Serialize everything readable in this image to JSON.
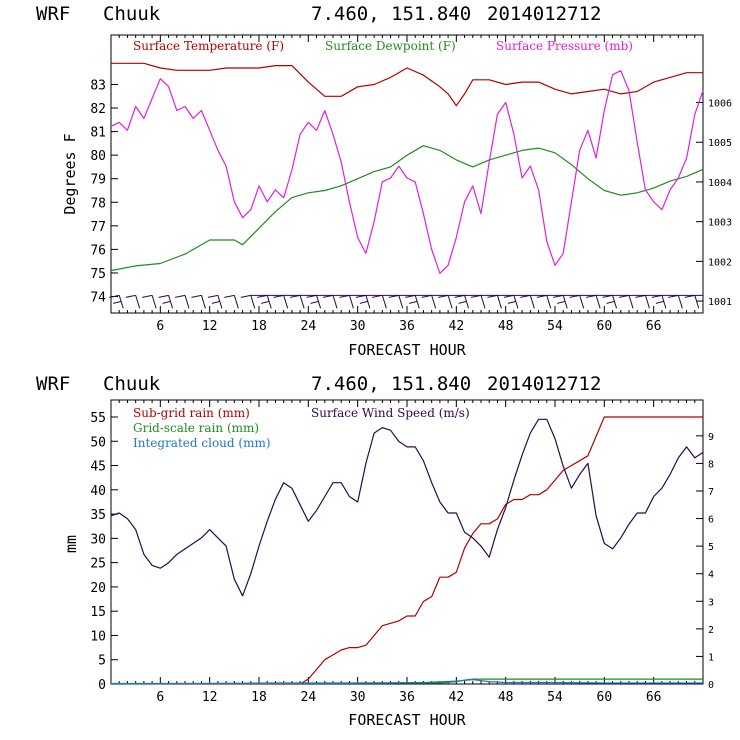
{
  "colors": {
    "temperature": "#b40000",
    "dewpoint": "#228b22",
    "pressure": "#e020e0",
    "subgrid_rain": "#b40000",
    "gridscale_rain": "#228b22",
    "cloud": "#1e78c8",
    "wind": "#2a0a4a",
    "barbs": "#2a0a4a"
  },
  "chart_data": [
    {
      "type": "line",
      "header": {
        "model": "WRF",
        "station": "Chuuk",
        "coords": "7.460, 151.840",
        "init": "2014012712"
      },
      "xlabel": "FORECAST HOUR",
      "ylabel": "Degrees F",
      "xlim": [
        0,
        72
      ],
      "xticks": [
        "6",
        "12",
        "18",
        "24",
        "30",
        "36",
        "42",
        "48",
        "54",
        "60",
        "66"
      ],
      "ylim": [
        73.3,
        85.1
      ],
      "yticks": [
        "74",
        "75",
        "76",
        "77",
        "78",
        "79",
        "80",
        "81",
        "82",
        "83"
      ],
      "y2lim": [
        1000.7,
        1007.7
      ],
      "y2ticks": [
        "1001",
        "1002",
        "1003",
        "1004",
        "1005",
        "1006"
      ],
      "legend": [
        "Surface Temperature (F)",
        "Surface Dewpoint (F)",
        "Surface Pressure (mb)"
      ],
      "series": [
        {
          "name": "Surface Temperature (F)",
          "axis": "left",
          "x": [
            0,
            2,
            4,
            6,
            8,
            10,
            12,
            14,
            16,
            18,
            20,
            22,
            24,
            26,
            28,
            30,
            32,
            34,
            36,
            38,
            40,
            41,
            42,
            43,
            44,
            46,
            48,
            50,
            52,
            54,
            56,
            58,
            60,
            62,
            64,
            66,
            68,
            70,
            72
          ],
          "y": [
            83.9,
            83.9,
            83.9,
            83.7,
            83.6,
            83.6,
            83.6,
            83.7,
            83.7,
            83.7,
            83.8,
            83.8,
            83.1,
            82.5,
            82.5,
            82.9,
            83.0,
            83.3,
            83.7,
            83.4,
            82.9,
            82.6,
            82.1,
            82.6,
            83.2,
            83.2,
            83.0,
            83.1,
            83.1,
            82.8,
            82.6,
            82.7,
            82.8,
            82.6,
            82.7,
            83.1,
            83.3,
            83.5,
            83.5
          ]
        },
        {
          "name": "Surface Dewpoint (F)",
          "axis": "left",
          "x": [
            0,
            3,
            6,
            9,
            12,
            15,
            16,
            18,
            20,
            22,
            24,
            26,
            28,
            30,
            32,
            34,
            36,
            38,
            40,
            42,
            44,
            46,
            48,
            50,
            52,
            54,
            56,
            58,
            60,
            62,
            64,
            66,
            68,
            70,
            72
          ],
          "y": [
            75.1,
            75.3,
            75.4,
            75.8,
            76.4,
            76.4,
            76.2,
            76.9,
            77.6,
            78.2,
            78.4,
            78.5,
            78.7,
            79.0,
            79.3,
            79.5,
            80.0,
            80.4,
            80.2,
            79.8,
            79.5,
            79.8,
            80.0,
            80.2,
            80.3,
            80.1,
            79.6,
            79.0,
            78.5,
            78.3,
            78.4,
            78.6,
            78.9,
            79.1,
            79.4
          ]
        },
        {
          "name": "Surface Pressure (mb)",
          "axis": "right",
          "x": [
            0,
            1,
            2,
            3,
            4,
            5,
            6,
            7,
            8,
            9,
            10,
            11,
            12,
            13,
            14,
            15,
            16,
            17,
            18,
            19,
            20,
            21,
            22,
            23,
            24,
            25,
            26,
            27,
            28,
            29,
            30,
            31,
            32,
            33,
            34,
            35,
            36,
            37,
            38,
            39,
            40,
            41,
            42,
            43,
            44,
            45,
            46,
            47,
            48,
            49,
            50,
            51,
            52,
            53,
            54,
            55,
            56,
            57,
            58,
            59,
            60,
            61,
            62,
            63,
            64,
            65,
            66,
            67,
            68,
            69,
            70,
            71,
            72
          ],
          "y": [
            1005.4,
            1005.5,
            1005.3,
            1005.9,
            1005.6,
            1006.1,
            1006.6,
            1006.4,
            1005.8,
            1005.9,
            1005.6,
            1005.8,
            1005.3,
            1004.8,
            1004.4,
            1003.5,
            1003.1,
            1003.3,
            1003.9,
            1003.5,
            1003.8,
            1003.6,
            1004.3,
            1005.2,
            1005.5,
            1005.3,
            1005.8,
            1005.2,
            1004.5,
            1003.5,
            1002.6,
            1002.2,
            1003.0,
            1004.0,
            1004.1,
            1004.4,
            1004.1,
            1004.0,
            1003.2,
            1002.3,
            1001.7,
            1001.9,
            1002.6,
            1003.5,
            1003.9,
            1003.2,
            1004.5,
            1005.7,
            1006.0,
            1005.2,
            1004.1,
            1004.4,
            1003.8,
            1002.5,
            1001.9,
            1002.2,
            1003.5,
            1004.8,
            1005.3,
            1004.6,
            1005.8,
            1006.7,
            1006.8,
            1006.3,
            1005.0,
            1003.8,
            1003.5,
            1003.3,
            1003.8,
            1004.1,
            1004.6,
            1005.7,
            1006.3
          ]
        }
      ],
      "wind_barbs": {
        "x": [
          1,
          3,
          5,
          7,
          9,
          11,
          13,
          15,
          17,
          19,
          21,
          23,
          25,
          27,
          29,
          31,
          33,
          35,
          37,
          39,
          41,
          43,
          45,
          47,
          49,
          51,
          53,
          55,
          57,
          59,
          61,
          63,
          65,
          67,
          69,
          71
        ],
        "row_value": 74.05,
        "label": "surface wind barbs"
      }
    },
    {
      "type": "line",
      "header": {
        "model": "WRF",
        "station": "Chuuk",
        "coords": "7.460, 151.840",
        "init": "2014012712"
      },
      "xlabel": "FORECAST HOUR",
      "ylabel": "mm",
      "xlim": [
        0,
        72
      ],
      "xticks": [
        "6",
        "12",
        "18",
        "24",
        "30",
        "36",
        "42",
        "48",
        "54",
        "60",
        "66"
      ],
      "ylim": [
        0,
        58.5
      ],
      "yticks": [
        "0",
        "5",
        "10",
        "15",
        "20",
        "25",
        "30",
        "35",
        "40",
        "45",
        "50",
        "55"
      ],
      "y2lim": [
        0,
        10.3
      ],
      "y2ticks": [
        "0",
        "1",
        "2",
        "3",
        "4",
        "5",
        "6",
        "7",
        "8",
        "9"
      ],
      "legend": [
        "Sub-grid rain (mm)",
        "Grid-scale rain (mm)",
        "Integrated cloud (mm)",
        "Surface Wind Speed (m/s)"
      ],
      "series": [
        {
          "name": "Sub-grid rain (mm)",
          "axis": "left",
          "x": [
            0,
            23,
            24,
            25,
            26,
            27,
            28,
            29,
            30,
            31,
            32,
            33,
            34,
            35,
            36,
            37,
            38,
            39,
            40,
            41,
            42,
            43,
            44,
            45,
            46,
            47,
            48,
            49,
            50,
            51,
            52,
            53,
            54,
            55,
            56,
            57,
            58,
            59,
            60,
            61,
            62,
            63,
            64,
            72
          ],
          "y": [
            0,
            0,
            1,
            3,
            5,
            6,
            7,
            7.5,
            7.5,
            8,
            10,
            12,
            12.5,
            13,
            14,
            14,
            17,
            18,
            22,
            22,
            23,
            28,
            31,
            33,
            33,
            34,
            37,
            38,
            38,
            39,
            39,
            40,
            42,
            44,
            45,
            46,
            47,
            51,
            55,
            55,
            55,
            55,
            55,
            55
          ]
        },
        {
          "name": "Grid-scale rain (mm)",
          "axis": "left",
          "x": [
            0,
            40,
            42,
            43,
            44,
            46,
            48,
            72
          ],
          "y": [
            0,
            0.2,
            0.5,
            0.8,
            1.0,
            1.0,
            1.0,
            1.0
          ]
        },
        {
          "name": "Integrated cloud (mm)",
          "axis": "left",
          "x": [
            0,
            10,
            20,
            30,
            38,
            42,
            44,
            46,
            48,
            54,
            60,
            66,
            72
          ],
          "y": [
            0.1,
            0.1,
            0.2,
            0.2,
            0.3,
            0.6,
            0.9,
            0.5,
            0.3,
            0.3,
            0.2,
            0.2,
            0.2
          ]
        },
        {
          "name": "Surface Wind Speed (m/s)",
          "axis": "right",
          "x": [
            0,
            1,
            2,
            3,
            4,
            5,
            6,
            7,
            8,
            9,
            10,
            11,
            12,
            13,
            14,
            15,
            16,
            17,
            18,
            19,
            20,
            21,
            22,
            23,
            24,
            25,
            26,
            27,
            28,
            29,
            30,
            31,
            32,
            33,
            34,
            35,
            36,
            37,
            38,
            39,
            40,
            41,
            42,
            43,
            44,
            45,
            46,
            47,
            48,
            49,
            50,
            51,
            52,
            53,
            54,
            55,
            56,
            57,
            58,
            59,
            60,
            61,
            62,
            63,
            64,
            65,
            66,
            67,
            68,
            69,
            70,
            71,
            72
          ],
          "y": [
            6.1,
            6.2,
            6.0,
            5.6,
            4.7,
            4.3,
            4.2,
            4.4,
            4.7,
            4.9,
            5.1,
            5.3,
            5.6,
            5.3,
            5.0,
            3.8,
            3.2,
            4.0,
            5.0,
            5.9,
            6.7,
            7.3,
            7.1,
            6.5,
            5.9,
            6.3,
            6.8,
            7.3,
            7.3,
            6.8,
            6.6,
            8.0,
            9.1,
            9.3,
            9.2,
            8.8,
            8.6,
            8.6,
            8.1,
            7.3,
            6.6,
            6.2,
            6.2,
            5.5,
            5.3,
            5.0,
            4.6,
            5.6,
            6.4,
            7.4,
            8.3,
            9.1,
            9.6,
            9.6,
            8.9,
            7.9,
            7.1,
            7.6,
            8.0,
            6.1,
            5.1,
            4.9,
            5.3,
            5.8,
            6.2,
            6.2,
            6.8,
            7.1,
            7.6,
            8.2,
            8.6,
            8.2,
            8.4
          ]
        }
      ]
    }
  ]
}
